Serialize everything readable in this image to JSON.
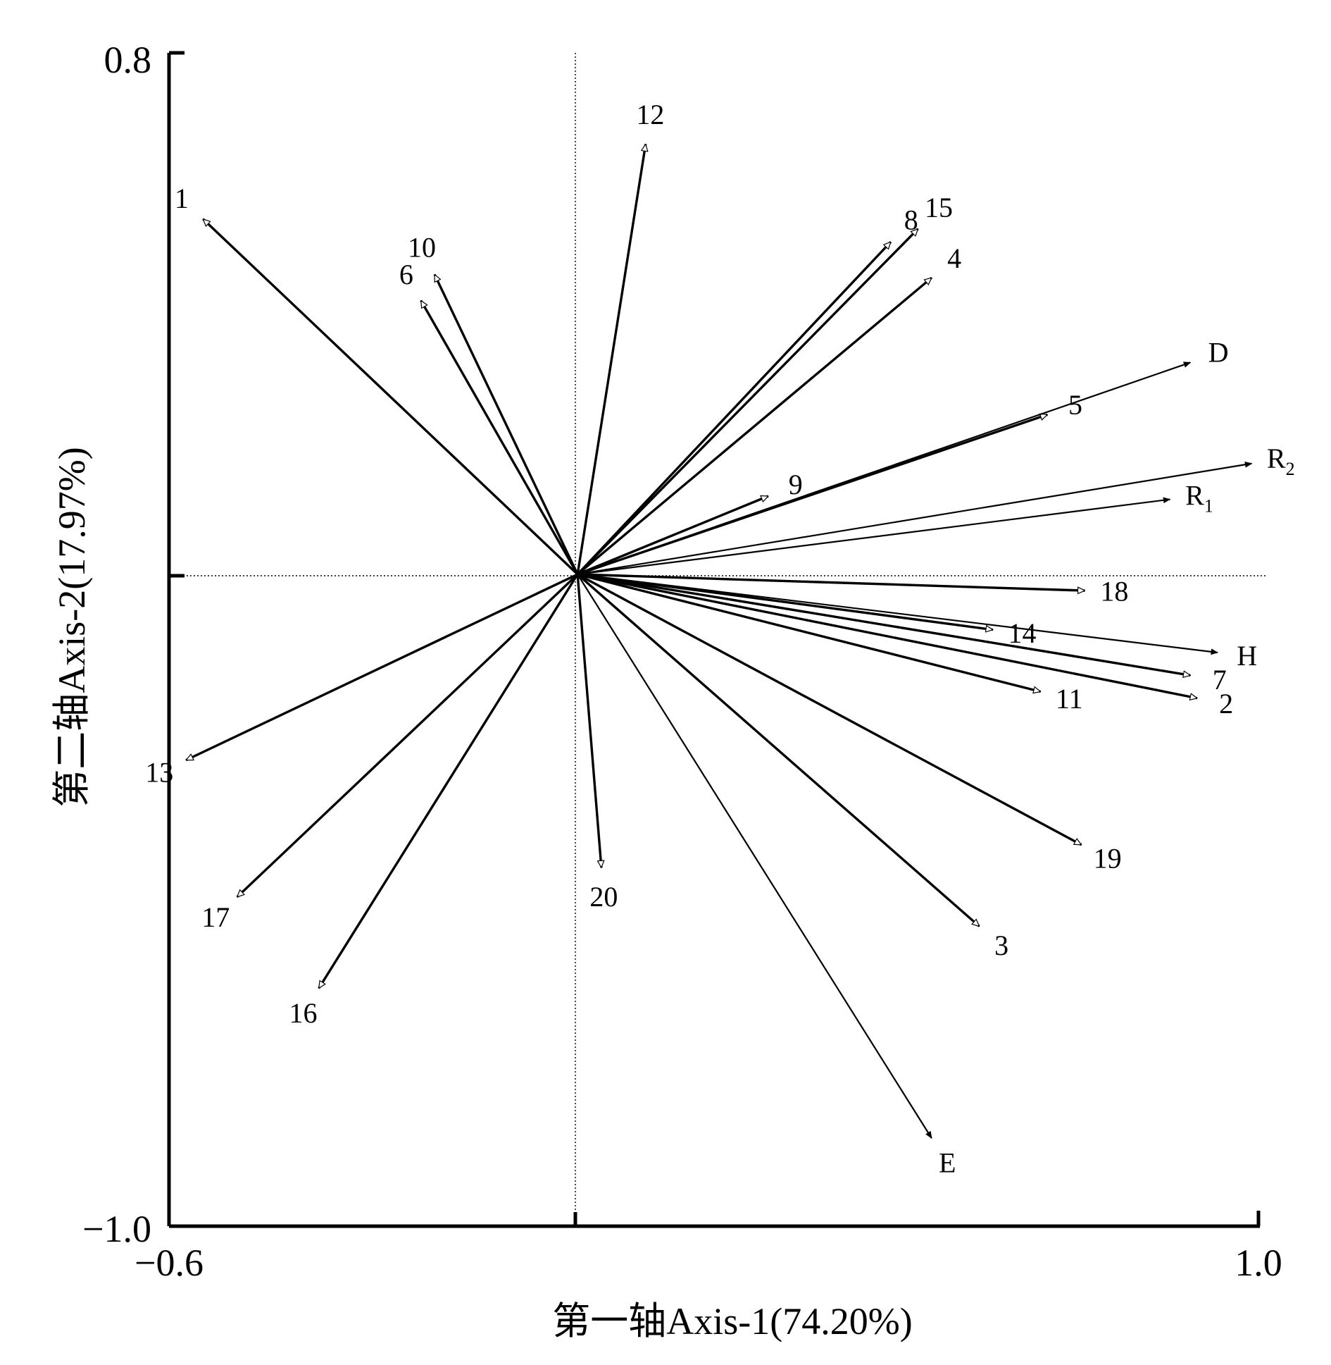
{
  "chart_data": {
    "type": "biplot",
    "xlabel": "第一轴Axis-1(74.20%)",
    "ylabel": "第二轴Axis-2(17.97%)",
    "xlim": [
      -0.6,
      1.0
    ],
    "ylim": [
      -1.0,
      0.8
    ],
    "x_tick_labels": [
      "−0.6",
      "1.0"
    ],
    "y_tick_labels": [
      "0.8",
      "−1.0"
    ],
    "grid": false,
    "zero_lines": true,
    "environment_vectors": [
      {
        "label": "D",
        "x": 0.9,
        "y": 0.325
      },
      {
        "label": "R",
        "sub": "2",
        "x": 0.99,
        "y": 0.17
      },
      {
        "label": "R",
        "sub": "1",
        "x": 0.87,
        "y": 0.115
      },
      {
        "label": "H",
        "x": 0.94,
        "y": -0.12
      },
      {
        "label": "E",
        "x": 0.52,
        "y": -0.865
      }
    ],
    "sample_vectors": [
      {
        "label": "1",
        "x": -0.55,
        "y": 0.545
      },
      {
        "label": "2",
        "x": 0.91,
        "y": -0.19
      },
      {
        "label": "3",
        "x": 0.59,
        "y": -0.54
      },
      {
        "label": "4",
        "x": 0.52,
        "y": 0.455
      },
      {
        "label": "5",
        "x": 0.69,
        "y": 0.245
      },
      {
        "label": "6",
        "x": -0.23,
        "y": 0.42
      },
      {
        "label": "7",
        "x": 0.9,
        "y": -0.155
      },
      {
        "label": "8",
        "x": 0.46,
        "y": 0.51
      },
      {
        "label": "9",
        "x": 0.28,
        "y": 0.12
      },
      {
        "label": "10",
        "x": -0.21,
        "y": 0.46
      },
      {
        "label": "11",
        "x": 0.68,
        "y": -0.18
      },
      {
        "label": "12",
        "x": 0.1,
        "y": 0.66
      },
      {
        "label": "13",
        "x": -0.575,
        "y": -0.285
      },
      {
        "label": "14",
        "x": 0.61,
        "y": -0.085
      },
      {
        "label": "15",
        "x": 0.5,
        "y": 0.53
      },
      {
        "label": "16",
        "x": -0.38,
        "y": -0.635
      },
      {
        "label": "17",
        "x": -0.5,
        "y": -0.495
      },
      {
        "label": "18",
        "x": 0.745,
        "y": -0.025
      },
      {
        "label": "19",
        "x": 0.74,
        "y": -0.415
      },
      {
        "label": "20",
        "x": 0.035,
        "y": -0.45
      }
    ]
  }
}
